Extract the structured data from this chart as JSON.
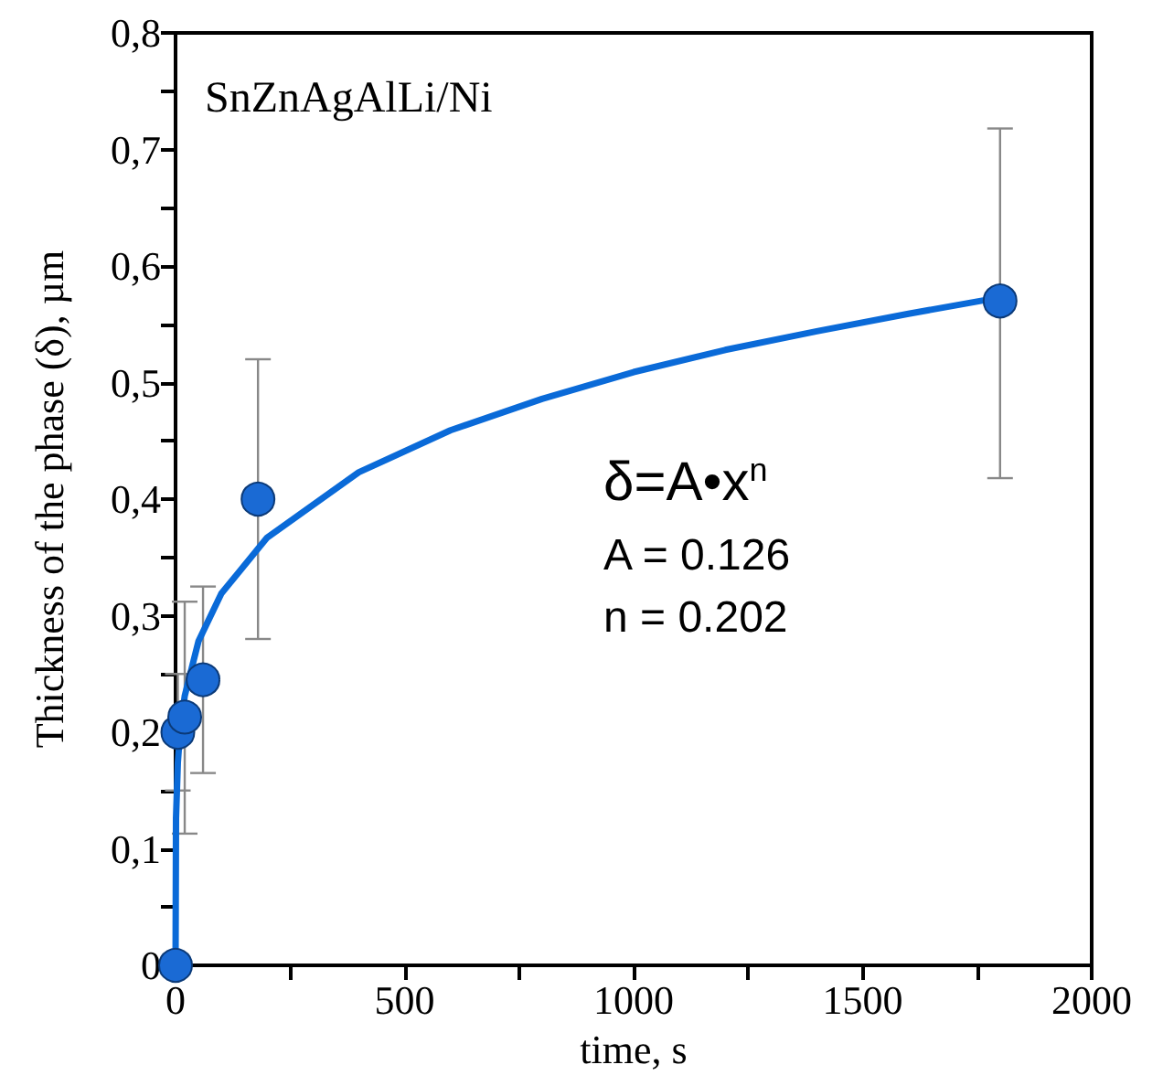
{
  "chart_data": {
    "type": "scatter",
    "xlabel": "time, s",
    "ylabel": "Thickness of the phase (δ), µm",
    "annotations": [
      "SnZnAgAlLi/Ni",
      "δ=A•x$^{n}$",
      "A = 0.126",
      "n = 0.202"
    ],
    "series": [
      {
        "color": "#1a6ad4",
        "x": [
          0,
          5,
          20,
          60,
          180,
          1800
        ],
        "values": [
          0,
          0.2,
          0.213,
          0.245,
          0.4,
          0.57
        ],
        "errors": [
          null,
          [
            0.15,
            0.25
          ],
          [
            0.113,
            0.312
          ],
          [
            0.165,
            0.325
          ],
          [
            0.28,
            0.52
          ],
          [
            0.418,
            0.718
          ]
        ],
        "marker": "circle"
      },
      {
        "type": "line",
        "color": "#0a6ad8",
        "x": [
          0,
          1,
          5,
          10,
          20,
          50,
          100,
          200,
          400,
          600,
          800,
          1000,
          1200,
          1400,
          1600,
          1800
        ],
        "values": [
          0,
          0.126,
          0.174,
          0.201,
          0.231,
          0.278,
          0.319,
          0.367,
          0.423,
          0.459,
          0.486,
          0.509,
          0.528,
          0.544,
          0.559,
          0.573
        ],
        "marker": "none",
        "line_style": "solid"
      }
    ],
    "xlim": [
      0,
      2000
    ],
    "xticks": [
      0,
      {
        "value": 250,
        "label": null
      },
      500,
      {
        "value": 750,
        "label": null
      },
      1000,
      {
        "value": 1250,
        "label": null
      },
      1500,
      {
        "value": 1750,
        "label": null
      },
      2000
    ],
    "ylim": [
      0,
      0.8
    ],
    "yticks": [
      {
        "value": 0,
        "label": "0"
      },
      {
        "value": 0.05,
        "label": null
      },
      {
        "value": 0.1,
        "label": "0,1"
      },
      {
        "value": 0.15,
        "label": null
      },
      {
        "value": 0.2,
        "label": "0,2"
      },
      {
        "value": 0.25,
        "label": null
      },
      {
        "value": 0.3,
        "label": "0,3"
      },
      {
        "value": 0.35,
        "label": null
      },
      {
        "value": 0.4,
        "label": "0,4"
      },
      {
        "value": 0.45,
        "label": null
      },
      {
        "value": 0.5,
        "label": "0,5"
      },
      {
        "value": 0.55,
        "label": null
      },
      {
        "value": 0.6,
        "label": "0,6"
      },
      {
        "value": 0.65,
        "label": null
      },
      {
        "value": 0.7,
        "label": "0,7"
      },
      {
        "value": 0.75,
        "label": null
      },
      {
        "value": 0.8,
        "label": "0,8"
      }
    ],
    "grid": false
  }
}
